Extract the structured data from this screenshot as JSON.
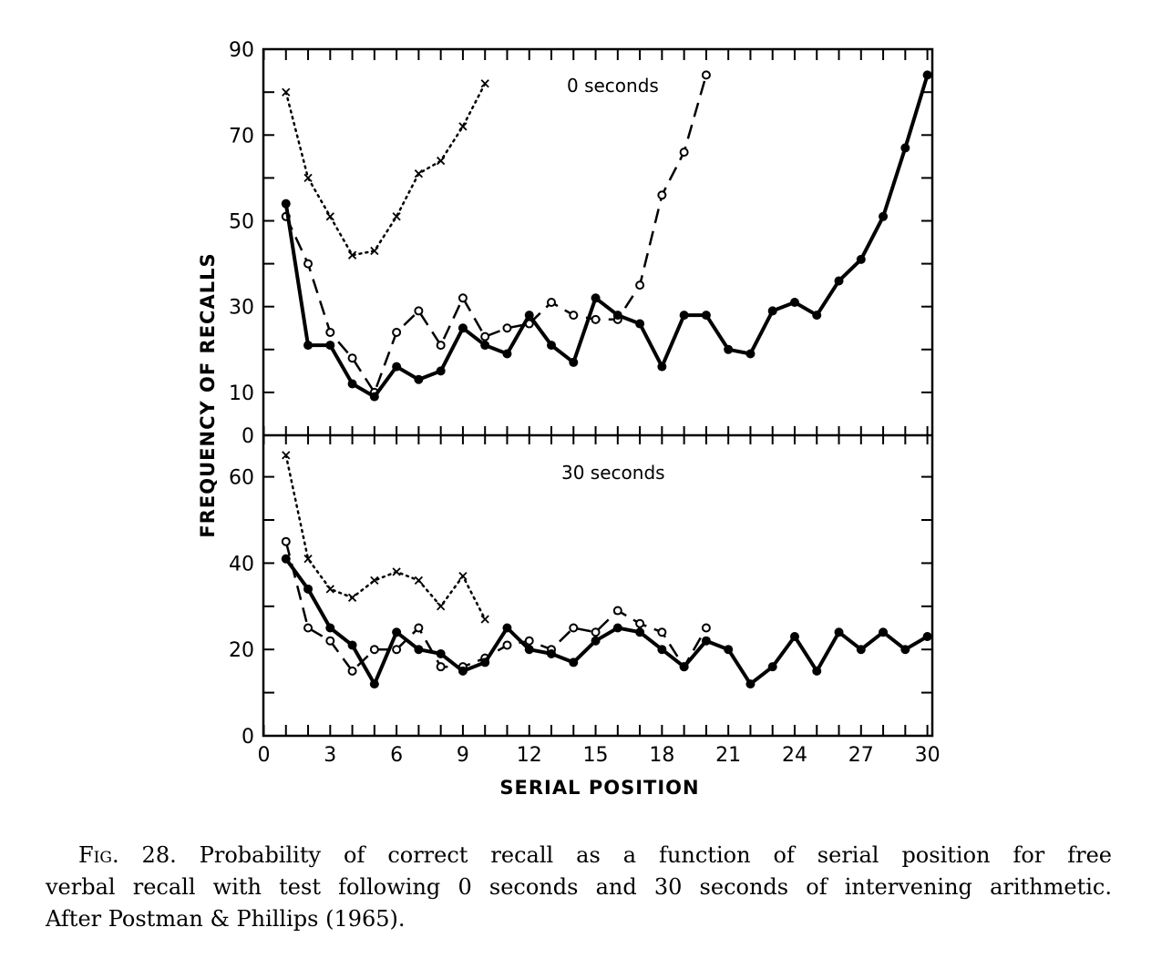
{
  "chart_data": [
    {
      "type": "line",
      "panel_label": "0 seconds",
      "ylabel": "FREQUENCY OF RECALLS",
      "xlabel": "SERIAL POSITION",
      "ylim": [
        0,
        90
      ],
      "yticks": [
        "90",
        "70",
        "50",
        "30",
        "10",
        "0"
      ],
      "ytick_values": [
        90,
        70,
        50,
        30,
        10,
        0
      ],
      "series": [
        {
          "style": "dotted-x",
          "x": [
            1,
            2,
            3,
            4,
            5,
            6,
            7,
            8,
            9,
            10
          ],
          "y": [
            80,
            60,
            51,
            42,
            43,
            51,
            61,
            64,
            72,
            82
          ]
        },
        {
          "style": "dashed-open-circle",
          "x": [
            1,
            2,
            3,
            4,
            5,
            6,
            7,
            8,
            9,
            10,
            11,
            12,
            13,
            14,
            15,
            16,
            17,
            18,
            19,
            20
          ],
          "y": [
            51,
            40,
            24,
            18,
            10,
            24,
            29,
            21,
            32,
            23,
            25,
            26,
            31,
            28,
            27,
            27,
            35,
            56,
            66,
            84
          ]
        },
        {
          "style": "solid-filled-circle",
          "x": [
            1,
            2,
            3,
            4,
            5,
            6,
            7,
            8,
            9,
            10,
            11,
            12,
            13,
            14,
            15,
            16,
            17,
            18,
            19,
            20,
            21,
            22,
            23,
            24,
            25,
            26,
            27,
            28,
            29,
            30
          ],
          "y": [
            54,
            21,
            21,
            12,
            9,
            16,
            13,
            15,
            25,
            21,
            19,
            28,
            21,
            17,
            32,
            28,
            26,
            16,
            28,
            28,
            20,
            19,
            29,
            31,
            28,
            36,
            41,
            51,
            67,
            84
          ]
        }
      ]
    },
    {
      "type": "line",
      "panel_label": "30 seconds",
      "ylim": [
        0,
        70
      ],
      "yticks": [
        "60",
        "40",
        "20",
        "0"
      ],
      "ytick_values": [
        60,
        40,
        20,
        0
      ],
      "xticks": [
        "0",
        "3",
        "6",
        "9",
        "12",
        "15",
        "18",
        "21",
        "24",
        "27",
        "30"
      ],
      "xtick_values": [
        0,
        3,
        6,
        9,
        12,
        15,
        18,
        21,
        24,
        27,
        30
      ],
      "series": [
        {
          "style": "dotted-x",
          "x": [
            1,
            2,
            3,
            4,
            5,
            6,
            7,
            8,
            9,
            10
          ],
          "y": [
            65,
            41,
            34,
            32,
            36,
            38,
            36,
            30,
            37,
            27
          ]
        },
        {
          "style": "dashed-open-circle",
          "x": [
            1,
            2,
            3,
            4,
            5,
            6,
            7,
            8,
            9,
            10,
            11,
            12,
            13,
            14,
            15,
            16,
            17,
            18,
            19,
            20
          ],
          "y": [
            45,
            25,
            22,
            15,
            20,
            20,
            25,
            16,
            16,
            18,
            21,
            22,
            20,
            25,
            24,
            29,
            26,
            24,
            16,
            25
          ]
        },
        {
          "style": "solid-filled-circle",
          "x": [
            1,
            2,
            3,
            4,
            5,
            6,
            7,
            8,
            9,
            10,
            11,
            12,
            13,
            14,
            15,
            16,
            17,
            18,
            19,
            20,
            21,
            22,
            23,
            24,
            25,
            26,
            27,
            28,
            29,
            30
          ],
          "y": [
            41,
            34,
            25,
            21,
            12,
            24,
            20,
            19,
            15,
            17,
            25,
            20,
            19,
            17,
            22,
            25,
            24,
            20,
            16,
            22,
            20,
            12,
            16,
            23,
            15,
            24,
            20,
            24,
            20,
            23
          ]
        }
      ]
    }
  ],
  "caption": {
    "fig_label": "Fig.",
    "line1_rest": " 28. Probability of correct recall as a function of serial position for free",
    "line2": "verbal recall with test following 0 seconds and 30 seconds of intervening arithmetic.",
    "line3": "After Postman & Phillips (1965)."
  }
}
